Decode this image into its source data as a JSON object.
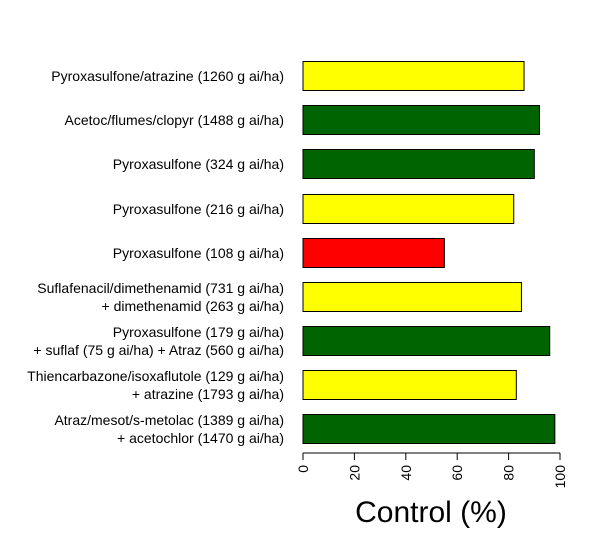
{
  "chart_data": {
    "type": "bar",
    "orientation": "horizontal",
    "title": "",
    "xlabel": "Control (%)",
    "ylabel": "",
    "xlim": [
      0,
      100
    ],
    "xticks": [
      "0",
      "20",
      "40",
      "60",
      "80",
      "100"
    ],
    "categories": [
      [
        "Pyroxasulfone/atrazine (1260 g ai/ha)"
      ],
      [
        "Acetoc/flumes/clopyr (1488 g ai/ha)"
      ],
      [
        "Pyroxasulfone (324 g ai/ha)"
      ],
      [
        "Pyroxasulfone (216 g ai/ha)"
      ],
      [
        "Pyroxasulfone (108 g ai/ha)"
      ],
      [
        "Suflafenacil/dimethenamid (731 g ai/ha)",
        "+ dimethenamid (263 g ai/ha)"
      ],
      [
        "Pyroxasulfone (179 g ai/ha)",
        "+ suflaf (75 g ai/ha) + Atraz (560 g ai/ha)"
      ],
      [
        "Thiencarbazone/isoxaflutole (129 g ai/ha)",
        "+ atrazine (1793 g ai/ha)"
      ],
      [
        "Atraz/mesot/s-metolac (1389 g ai/ha)",
        "+ acetochlor (1470 g ai/ha)"
      ]
    ],
    "values": [
      86,
      92,
      90,
      82,
      55,
      85,
      96,
      83,
      98
    ],
    "bar_colors": [
      "#ffff00",
      "#006400",
      "#006400",
      "#ffff00",
      "#ff0000",
      "#ffff00",
      "#006400",
      "#ffff00",
      "#006400"
    ],
    "grid": false,
    "legend": "none"
  }
}
